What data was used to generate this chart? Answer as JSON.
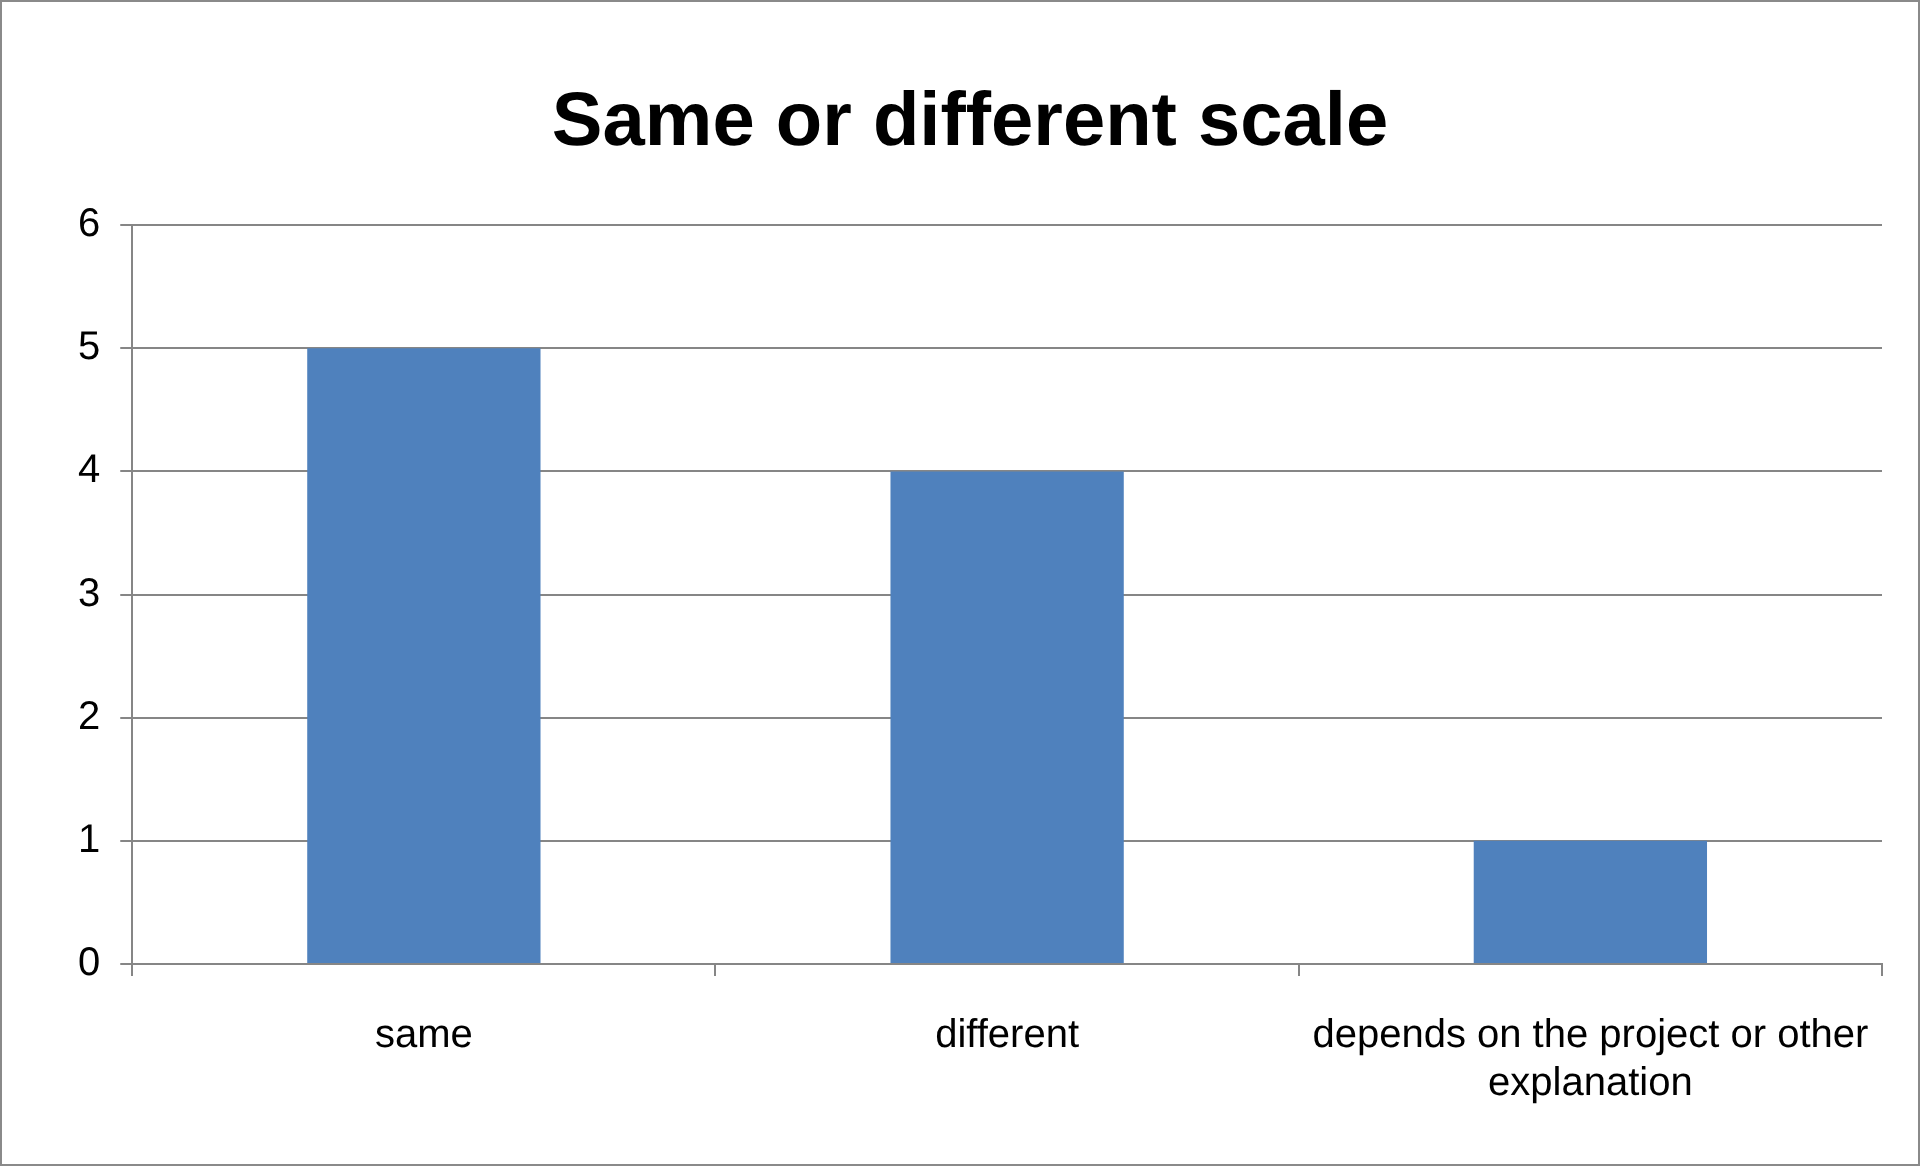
{
  "chart_data": {
    "type": "bar",
    "title": "Same or different scale",
    "categories": [
      "same",
      "different",
      "depends on the project or other explanation"
    ],
    "values": [
      5,
      4,
      1
    ],
    "color": "#4f81bd",
    "ylim": [
      0,
      6
    ],
    "yticks": [
      0,
      1,
      2,
      3,
      4,
      5,
      6
    ],
    "grid": "y",
    "legend": false
  }
}
